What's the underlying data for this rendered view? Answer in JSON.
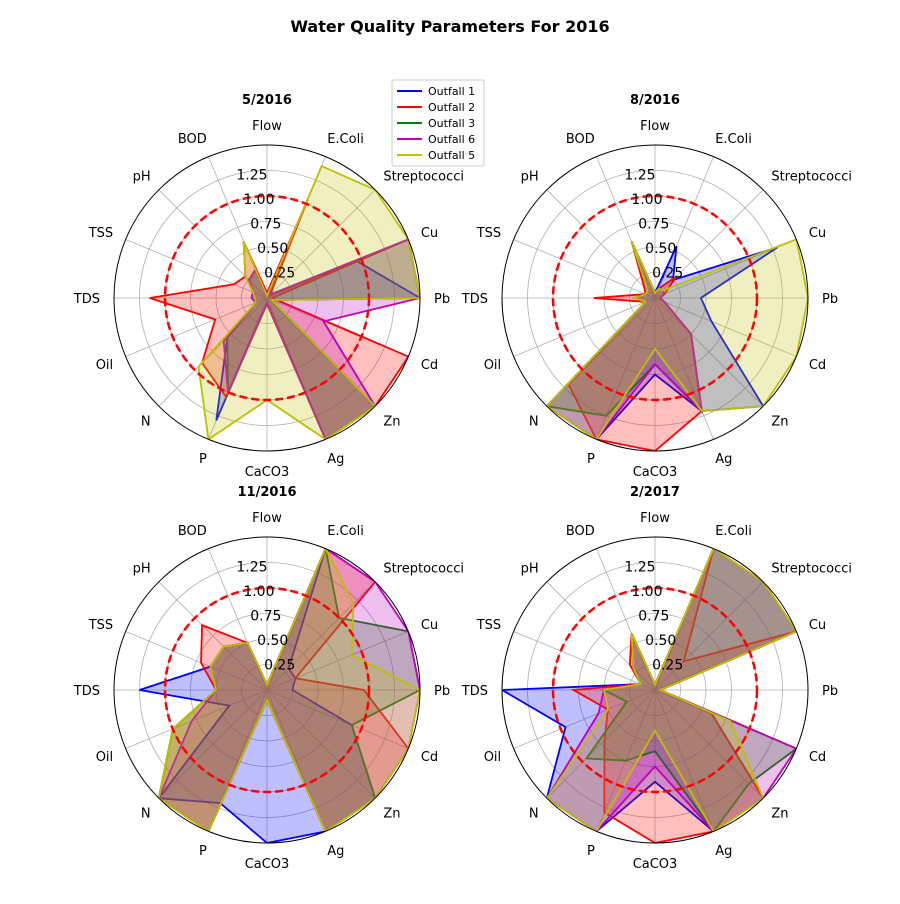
{
  "figure_title": "Water Quality Parameters For 2016",
  "colors": {
    "Outfall 1": "#0000ff",
    "Outfall 2": "#ff0000",
    "Outfall 3": "#007f00",
    "Outfall 6": "#bf00bf",
    "Outfall 5": "#bfbf00",
    "threshold": "#ff0000",
    "grid": "#b0b0b0"
  },
  "legend": {
    "placement": "upper-center",
    "entries": [
      "Outfall 1",
      "Outfall 2",
      "Outfall 3",
      "Outfall 6",
      "Outfall 5"
    ]
  },
  "chart_data": [
    {
      "type": "radar",
      "title": "5/2016",
      "categories": [
        "Flow",
        "E.Coli",
        "Streptococci",
        "Cu",
        "Pb",
        "Cd",
        "Zn",
        "Ag",
        "CaCO3",
        "P",
        "N",
        "Oil",
        "TDS",
        "TSS",
        "pH",
        "BOD"
      ],
      "radial_ticks": [
        "0.25",
        "0.50",
        "0.75",
        "1.00",
        "1.25"
      ],
      "rlim": [
        0,
        1.5
      ],
      "threshold": 1.0,
      "series": [
        {
          "name": "Outfall 1",
          "values": [
            0.02,
            0.45,
            0.05,
            0.95,
            1.5,
            0.05,
            1.5,
            1.5,
            0.05,
            1.3,
            0.55,
            0.12,
            0.12,
            0.15,
            0.25,
            0.3
          ]
        },
        {
          "name": "Outfall 2",
          "values": [
            0.05,
            1.05,
            0.04,
            1.5,
            0.05,
            1.5,
            1.5,
            1.5,
            0.06,
            1.05,
            0.9,
            0.55,
            1.15,
            0.35,
            0.3,
            0.6
          ]
        },
        {
          "name": "Outfall 3",
          "values": [
            0.02,
            0.1,
            0.05,
            1.5,
            1.5,
            0.05,
            1.5,
            1.5,
            0.05,
            1.0,
            0.55,
            0.12,
            0.12,
            0.15,
            0.25,
            0.3
          ]
        },
        {
          "name": "Outfall 6",
          "values": [
            0.02,
            0.1,
            0.05,
            1.5,
            1.5,
            0.6,
            1.5,
            1.5,
            0.05,
            1.0,
            0.6,
            0.12,
            0.15,
            0.15,
            0.25,
            0.3
          ]
        },
        {
          "name": "Outfall 5",
          "values": [
            0.02,
            1.4,
            1.5,
            1.5,
            1.5,
            0.05,
            1.5,
            1.5,
            1.0,
            1.5,
            0.95,
            0.12,
            0.12,
            0.15,
            0.3,
            0.6
          ]
        }
      ]
    },
    {
      "type": "radar",
      "title": "8/2016",
      "categories": [
        "Flow",
        "E.Coli",
        "Streptococci",
        "Cu",
        "Pb",
        "Cd",
        "Zn",
        "Ag",
        "CaCO3",
        "P",
        "N",
        "Oil",
        "TDS",
        "TSS",
        "pH",
        "BOD"
      ],
      "radial_ticks": [
        "0.25",
        "0.50",
        "0.75",
        "1.00",
        "1.25"
      ],
      "rlim": [
        0,
        1.5
      ],
      "threshold": 1.0,
      "series": [
        {
          "name": "Outfall 1",
          "values": [
            0.05,
            0.55,
            0.25,
            1.3,
            0.45,
            0.6,
            1.5,
            1.2,
            0.75,
            1.5,
            1.5,
            0.1,
            0.2,
            0.1,
            0.1,
            0.6
          ]
        },
        {
          "name": "Outfall 2",
          "values": [
            0.05,
            0.1,
            0.3,
            0.1,
            0.05,
            0.1,
            0.5,
            1.2,
            1.5,
            1.5,
            1.2,
            0.1,
            0.6,
            0.1,
            0.15,
            0.6
          ]
        },
        {
          "name": "Outfall 3",
          "values": [
            0.05,
            0.1,
            0.1,
            0.1,
            0.05,
            0.1,
            0.5,
            1.2,
            0.65,
            1.25,
            1.5,
            0.1,
            0.2,
            0.1,
            0.1,
            0.6
          ]
        },
        {
          "name": "Outfall 6",
          "values": [
            0.05,
            0.1,
            0.1,
            0.1,
            0.05,
            0.1,
            0.5,
            1.2,
            0.65,
            1.5,
            1.5,
            0.1,
            0.2,
            0.1,
            0.1,
            0.6
          ]
        },
        {
          "name": "Outfall 5",
          "values": [
            0.05,
            0.1,
            0.1,
            1.5,
            1.5,
            1.5,
            1.5,
            1.2,
            0.5,
            1.5,
            1.5,
            0.1,
            0.2,
            0.1,
            0.1,
            0.6
          ]
        }
      ]
    },
    {
      "type": "radar",
      "title": "11/2016",
      "categories": [
        "Flow",
        "E.Coli",
        "Streptococci",
        "Cu",
        "Pb",
        "Cd",
        "Zn",
        "Ag",
        "CaCO3",
        "P",
        "N",
        "Oil",
        "TDS",
        "TSS",
        "pH",
        "BOD"
      ],
      "radial_ticks": [
        "0.25",
        "0.50",
        "0.75",
        "1.00",
        "1.25"
      ],
      "rlim": [
        0,
        1.5
      ],
      "threshold": 1.0,
      "series": [
        {
          "name": "Outfall 1",
          "values": [
            0.05,
            1.5,
            0.3,
            0.3,
            0.25,
            0.9,
            1.5,
            1.5,
            1.5,
            1.2,
            1.5,
            0.4,
            1.25,
            0.6,
            0.6,
            0.5
          ]
        },
        {
          "name": "Outfall 2",
          "values": [
            0.05,
            1.5,
            1.5,
            0.3,
            0.95,
            1.5,
            1.5,
            1.5,
            0.1,
            1.5,
            1.5,
            1.0,
            0.5,
            0.7,
            0.9,
            0.5
          ]
        },
        {
          "name": "Outfall 3",
          "values": [
            0.05,
            1.5,
            1.0,
            1.5,
            1.5,
            0.9,
            1.5,
            1.5,
            0.1,
            1.5,
            1.5,
            1.0,
            0.5,
            0.6,
            0.6,
            0.5
          ]
        },
        {
          "name": "Outfall 6",
          "values": [
            0.05,
            1.5,
            1.5,
            1.5,
            1.5,
            1.5,
            1.5,
            1.5,
            0.1,
            1.5,
            1.5,
            0.8,
            0.5,
            0.6,
            0.6,
            0.5
          ]
        },
        {
          "name": "Outfall 5",
          "values": [
            0.05,
            1.5,
            1.2,
            0.9,
            1.5,
            1.5,
            1.5,
            1.5,
            0.1,
            1.5,
            1.5,
            1.0,
            0.5,
            0.6,
            0.6,
            0.5
          ]
        }
      ]
    },
    {
      "type": "radar",
      "title": "2/2017",
      "categories": [
        "Flow",
        "E.Coli",
        "Streptococci",
        "Cu",
        "Pb",
        "Cd",
        "Zn",
        "Ag",
        "CaCO3",
        "P",
        "N",
        "Oil",
        "TDS",
        "TSS",
        "pH",
        "BOD"
      ],
      "radial_ticks": [
        "0.25",
        "0.50",
        "0.75",
        "1.00",
        "1.25"
      ],
      "rlim": [
        0,
        1.5
      ],
      "threshold": 1.0,
      "series": [
        {
          "name": "Outfall 1",
          "values": [
            0.05,
            1.5,
            1.5,
            1.5,
            0.05,
            0.6,
            1.5,
            1.5,
            0.9,
            1.5,
            1.5,
            0.95,
            1.5,
            0.15,
            0.3,
            0.6
          ]
        },
        {
          "name": "Outfall 2",
          "values": [
            0.05,
            1.5,
            0.4,
            1.5,
            0.05,
            0.6,
            1.5,
            1.5,
            1.5,
            1.3,
            0.7,
            0.5,
            0.8,
            0.15,
            0.35,
            0.6
          ]
        },
        {
          "name": "Outfall 3",
          "values": [
            0.05,
            1.5,
            1.5,
            1.5,
            0.05,
            1.5,
            1.3,
            1.5,
            0.6,
            0.75,
            0.95,
            0.3,
            0.5,
            0.15,
            0.3,
            0.6
          ]
        },
        {
          "name": "Outfall 6",
          "values": [
            0.05,
            1.5,
            1.5,
            1.5,
            0.05,
            1.5,
            1.5,
            1.5,
            0.75,
            1.5,
            1.5,
            0.6,
            0.5,
            0.15,
            0.3,
            0.6
          ]
        },
        {
          "name": "Outfall 5",
          "values": [
            0.05,
            1.5,
            1.5,
            1.5,
            0.05,
            0.8,
            1.5,
            1.5,
            0.4,
            1.5,
            1.5,
            0.5,
            0.5,
            0.15,
            0.3,
            0.6
          ]
        }
      ]
    }
  ]
}
